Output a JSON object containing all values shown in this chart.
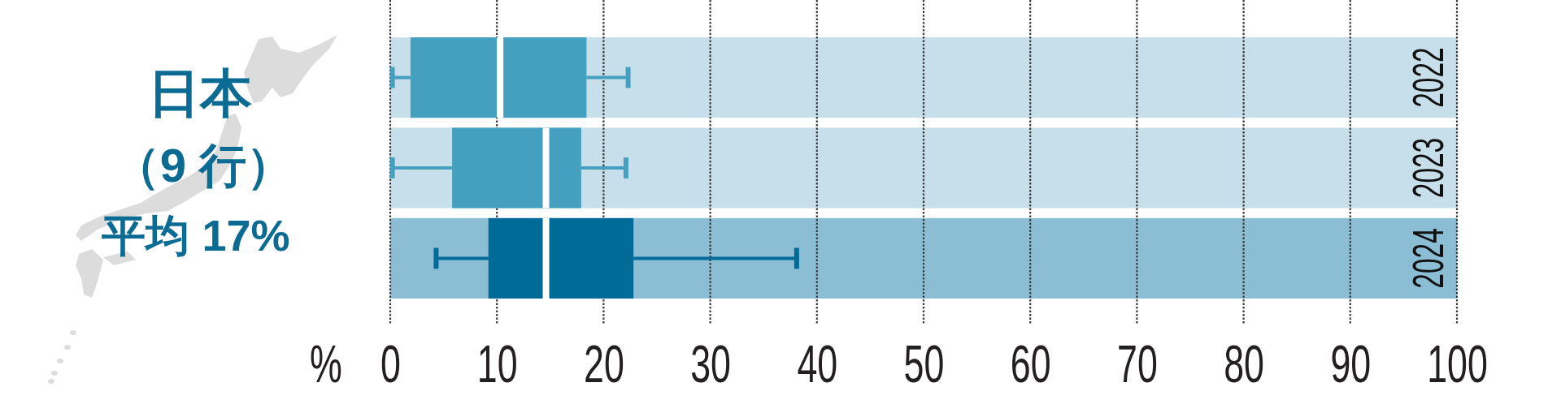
{
  "chart_data": {
    "type": "box",
    "orientation": "horizontal",
    "title": "日本",
    "subtitle": "（9 行）",
    "annotations": [
      "平均 17%"
    ],
    "xlabel": "%",
    "categories": [
      "2022",
      "2023",
      "2024"
    ],
    "boxes": [
      {
        "low": 0.2,
        "q1": 1.9,
        "median": 10.3,
        "q3": 18.4,
        "high": 22.3
      },
      {
        "low": 0.2,
        "q1": 5.8,
        "median": 14.6,
        "q3": 17.9,
        "high": 22.1
      },
      {
        "low": 4.3,
        "q1": 9.2,
        "median": 14.6,
        "q3": 22.8,
        "high": 38.1
      }
    ],
    "colors": [
      "#459fbf",
      "#459fbf",
      "#006b96"
    ],
    "bands": [
      {
        "axis": "y",
        "from": "2022",
        "to": "2022",
        "color": "#c6dfea"
      },
      {
        "axis": "y",
        "from": "2023",
        "to": "2023",
        "color": "#c6dfea"
      },
      {
        "axis": "y",
        "from": "2024",
        "to": "2024",
        "color": "#8bbdd5"
      }
    ],
    "xlim": [
      0,
      100
    ],
    "xticks": [
      0,
      10,
      20,
      30,
      40,
      50,
      60,
      70,
      80,
      90,
      100
    ],
    "grid": "x"
  }
}
